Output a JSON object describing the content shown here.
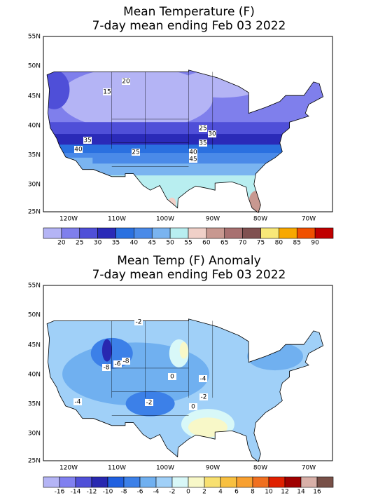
{
  "panels": [
    {
      "title": [
        "Mean Temperature (F)",
        "7-day mean ending Feb 03 2022"
      ],
      "lat_labels": [
        "55N",
        "50N",
        "45N",
        "40N",
        "35N",
        "30N",
        "25N"
      ],
      "lon_labels": [
        "120W",
        "110W",
        "100W",
        "90W",
        "80W",
        "70W"
      ],
      "colorbar": {
        "labels": [
          "20",
          "25",
          "30",
          "35",
          "40",
          "45",
          "50",
          "55",
          "60",
          "65",
          "70",
          "75",
          "80",
          "85",
          "90"
        ],
        "colors": [
          "#b4b4f5",
          "#7f7fec",
          "#4f4fd8",
          "#2a2ab8",
          "#2a70e0",
          "#4a8ae8",
          "#7ab4f0",
          "#b8eef0",
          "#f0d0c8",
          "#c89890",
          "#a87070",
          "#805050",
          "#f8e878",
          "#f8a800",
          "#f05000",
          "#c00000"
        ]
      },
      "contour_labels": [
        "20",
        "15",
        "25",
        "30",
        "35",
        "40",
        "45",
        "35",
        "40",
        "25"
      ]
    },
    {
      "title": [
        "Mean Temp (F) Anomaly",
        "7-day mean ending Feb 03 2022"
      ],
      "lat_labels": [
        "55N",
        "50N",
        "45N",
        "40N",
        "35N",
        "30N",
        "25N"
      ],
      "lon_labels": [
        "120W",
        "110W",
        "100W",
        "90W",
        "80W",
        "70W"
      ],
      "colorbar": {
        "labels": [
          "-16",
          "-14",
          "-12",
          "-10",
          "-8",
          "-6",
          "-4",
          "-2",
          "0",
          "2",
          "4",
          "6",
          "8",
          "10",
          "12",
          "14",
          "16"
        ],
        "colors": [
          "#b4b4f5",
          "#8080f0",
          "#5050d8",
          "#2828b0",
          "#2060e0",
          "#3c80e8",
          "#70b0f0",
          "#a0d0f8",
          "#d8f8f8",
          "#f8f8c8",
          "#f8e070",
          "#f8c040",
          "#f8a030",
          "#f07020",
          "#e02000",
          "#a00000",
          "#d8b0a8",
          "#785048"
        ]
      },
      "contour_labels": [
        "-2",
        "-8",
        "-6",
        "-8",
        "0",
        "-4",
        "-2",
        "0",
        "-4",
        "-2"
      ]
    }
  ]
}
